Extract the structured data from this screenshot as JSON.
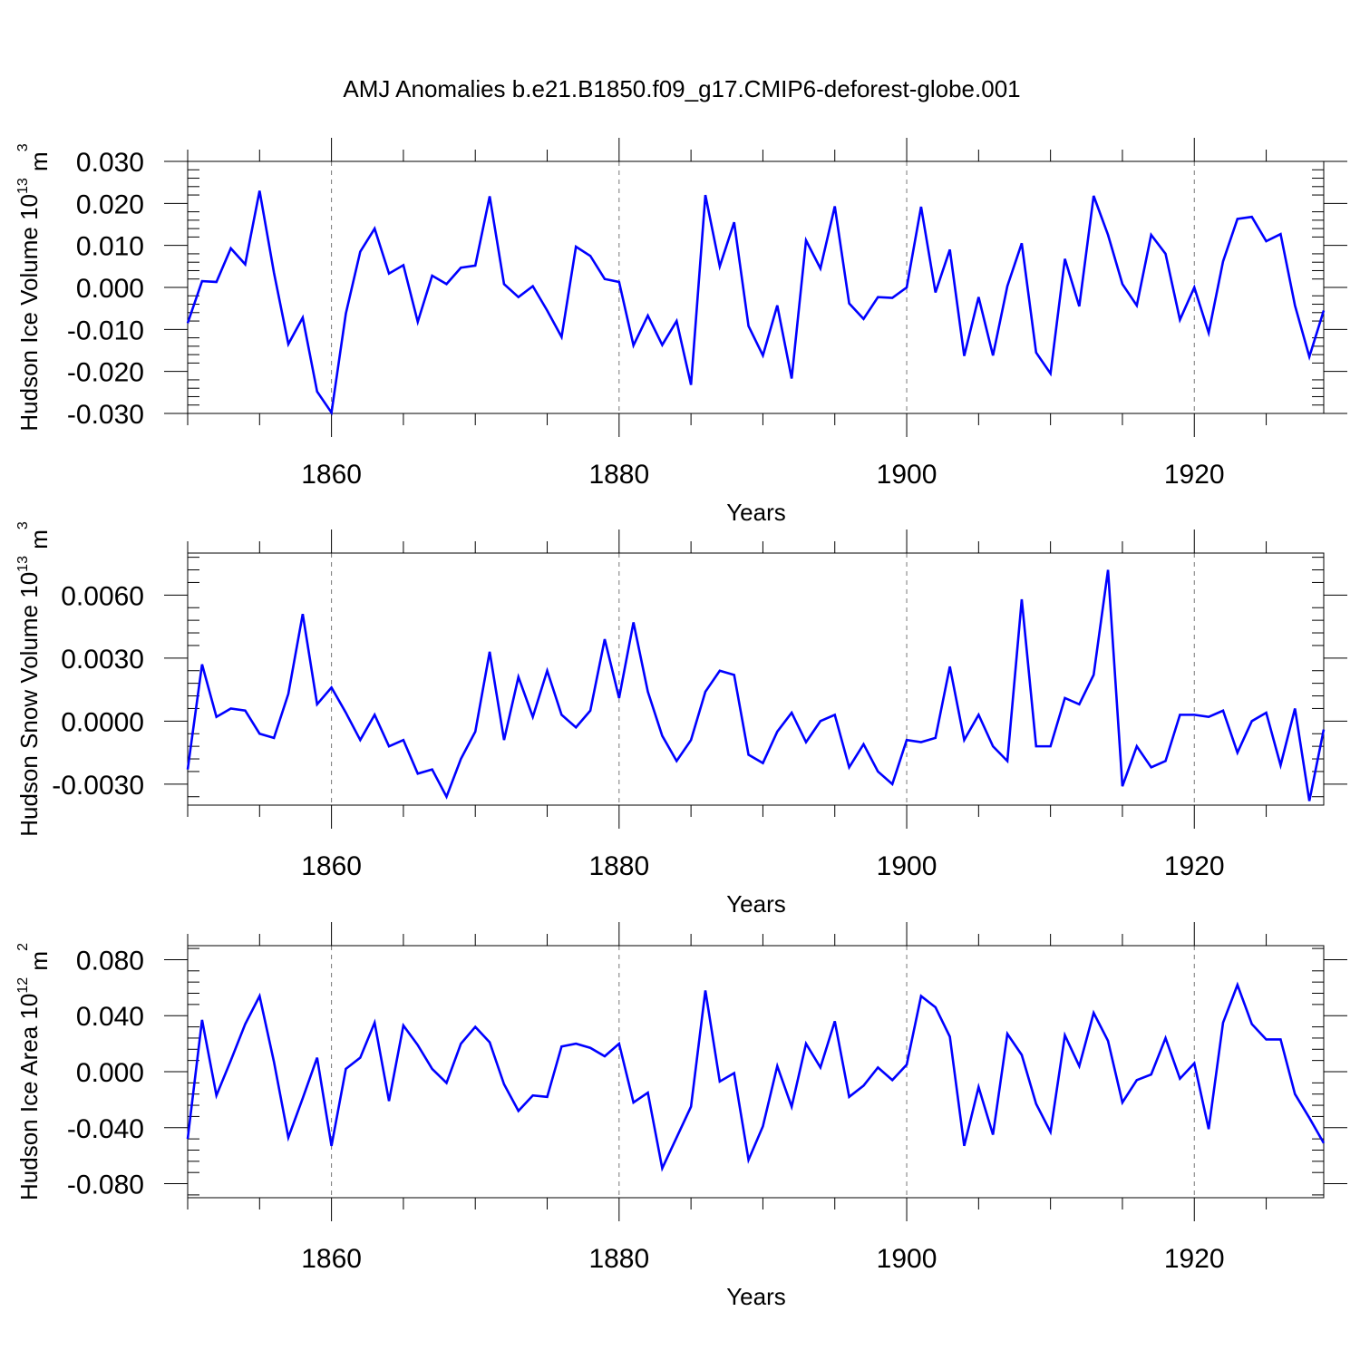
{
  "title": "AMJ Anomalies b.e21.B1850.f09_g17.CMIP6-deforest-globe.001",
  "colors": {
    "line": "#0000ff",
    "frame": "#000000",
    "grid": "#777777",
    "background": "#ffffff"
  },
  "chart_data": [
    {
      "type": "line",
      "ylabel": "Hudson Ice Volume 10",
      "ylabel_sup": "13",
      "ylabel_unit": " m",
      "ylabel_unit_sup": "3",
      "xlabel": "Years",
      "xlim": [
        1850,
        1929
      ],
      "ylim": [
        -0.03,
        0.03
      ],
      "yticks": [
        -0.03,
        -0.02,
        -0.01,
        0.0,
        0.01,
        0.02,
        0.03
      ],
      "ytick_labels": [
        "-0.030",
        "-0.020",
        "-0.010",
        "0.000",
        "0.010",
        "0.020",
        "0.030"
      ],
      "xticks": [
        1860,
        1880,
        1900,
        1920
      ],
      "xtick_labels": [
        "1860",
        "1880",
        "1900",
        "1920"
      ],
      "grid": "vertical dashed at major x ticks",
      "x_start": 1850,
      "values": [
        -0.0085,
        0.0015,
        0.0013,
        0.0093,
        0.0055,
        0.023,
        0.0035,
        -0.0135,
        -0.0072,
        -0.0248,
        -0.0298,
        -0.0062,
        0.0085,
        0.014,
        0.0033,
        0.0053,
        -0.0082,
        0.0028,
        0.0008,
        0.0047,
        0.0052,
        0.0217,
        0.0008,
        -0.0023,
        0.0003,
        -0.0055,
        -0.0118,
        0.0097,
        0.0075,
        0.002,
        0.0013,
        -0.0138,
        -0.0067,
        -0.0137,
        -0.008,
        -0.0232,
        0.022,
        0.005,
        0.0155,
        -0.0092,
        -0.0162,
        -0.0043,
        -0.0217,
        0.0112,
        0.0045,
        0.0193,
        -0.0038,
        -0.0075,
        -0.0023,
        -0.0025,
        0.0,
        0.0192,
        -0.0012,
        0.009,
        -0.0163,
        -0.0023,
        -0.0162,
        0.0003,
        0.0105,
        -0.0155,
        -0.0205,
        0.0068,
        -0.0045,
        0.0218,
        0.0125,
        0.0008,
        -0.0043,
        0.0125,
        0.008,
        -0.0077,
        0.0,
        -0.0108,
        0.0062,
        0.0163,
        0.0168,
        0.011,
        0.0127,
        -0.0043,
        -0.0165,
        -0.0055
      ]
    },
    {
      "type": "line",
      "ylabel": "Hudson Snow Volume 10",
      "ylabel_sup": "13",
      "ylabel_unit": " m",
      "ylabel_unit_sup": "3",
      "xlabel": "Years",
      "xlim": [
        1850,
        1929
      ],
      "ylim": [
        -0.004,
        0.008
      ],
      "yticks": [
        -0.003,
        0.0,
        0.003,
        0.006
      ],
      "ytick_labels": [
        "-0.0030",
        "0.0000",
        "0.0030",
        "0.0060"
      ],
      "xticks": [
        1860,
        1880,
        1900,
        1920
      ],
      "xtick_labels": [
        "1860",
        "1880",
        "1900",
        "1920"
      ],
      "grid": "vertical dashed at major x ticks",
      "x_start": 1850,
      "values": [
        -0.0023,
        0.0027,
        0.0002,
        0.0006,
        0.0005,
        -0.0006,
        -0.0008,
        0.0013,
        0.0051,
        0.0008,
        0.0016,
        0.0004,
        -0.0009,
        0.0003,
        -0.0012,
        -0.0009,
        -0.0025,
        -0.0023,
        -0.0036,
        -0.0018,
        -0.0005,
        0.0033,
        -0.0009,
        0.0021,
        0.0002,
        0.0024,
        0.0003,
        -0.0003,
        0.0005,
        0.0039,
        0.0011,
        0.0047,
        0.0014,
        -0.0007,
        -0.0019,
        -0.0009,
        0.0014,
        0.0024,
        0.0022,
        -0.0016,
        -0.002,
        -0.0005,
        0.0004,
        -0.001,
        0.0,
        0.0003,
        -0.0022,
        -0.0011,
        -0.0024,
        -0.003,
        -0.0009,
        -0.001,
        -0.0008,
        0.0026,
        -0.0009,
        0.0003,
        -0.0012,
        -0.0019,
        0.0058,
        -0.0012,
        -0.0012,
        0.0011,
        0.0008,
        0.0022,
        0.0072,
        -0.0031,
        -0.0012,
        -0.0022,
        -0.0019,
        0.0003,
        0.0003,
        0.0002,
        0.0005,
        -0.0015,
        0.0,
        0.0004,
        -0.0021,
        0.0006,
        -0.0038,
        -0.0004
      ]
    },
    {
      "type": "line",
      "ylabel": "Hudson Ice Area 10",
      "ylabel_sup": "12",
      "ylabel_unit": " m",
      "ylabel_unit_sup": "2",
      "xlabel": "Years",
      "xlim": [
        1850,
        1929
      ],
      "ylim": [
        -0.09,
        0.09
      ],
      "yticks": [
        -0.08,
        -0.04,
        0.0,
        0.04,
        0.08
      ],
      "ytick_labels": [
        "-0.080",
        "-0.040",
        "0.000",
        "0.040",
        "0.080"
      ],
      "xticks": [
        1860,
        1880,
        1900,
        1920
      ],
      "xtick_labels": [
        "1860",
        "1880",
        "1900",
        "1920"
      ],
      "grid": "vertical dashed at major x ticks",
      "x_start": 1850,
      "values": [
        -0.048,
        0.037,
        -0.017,
        0.008,
        0.034,
        0.054,
        0.007,
        -0.047,
        -0.019,
        0.01,
        -0.053,
        0.002,
        0.01,
        0.035,
        -0.021,
        0.033,
        0.019,
        0.002,
        -0.008,
        0.02,
        0.032,
        0.021,
        -0.009,
        -0.028,
        -0.017,
        -0.018,
        0.018,
        0.02,
        0.017,
        0.011,
        0.02,
        -0.022,
        -0.015,
        -0.069,
        -0.047,
        -0.025,
        0.058,
        -0.007,
        -0.001,
        -0.063,
        -0.039,
        0.004,
        -0.025,
        0.02,
        0.003,
        0.036,
        -0.018,
        -0.01,
        0.003,
        -0.006,
        0.005,
        0.054,
        0.046,
        0.025,
        -0.053,
        -0.011,
        -0.045,
        0.027,
        0.012,
        -0.023,
        -0.043,
        0.026,
        0.004,
        0.042,
        0.022,
        -0.022,
        -0.006,
        -0.002,
        0.024,
        -0.005,
        0.006,
        -0.041,
        0.035,
        0.062,
        0.034,
        0.023,
        0.023,
        -0.016,
        -0.033,
        -0.051
      ]
    }
  ]
}
